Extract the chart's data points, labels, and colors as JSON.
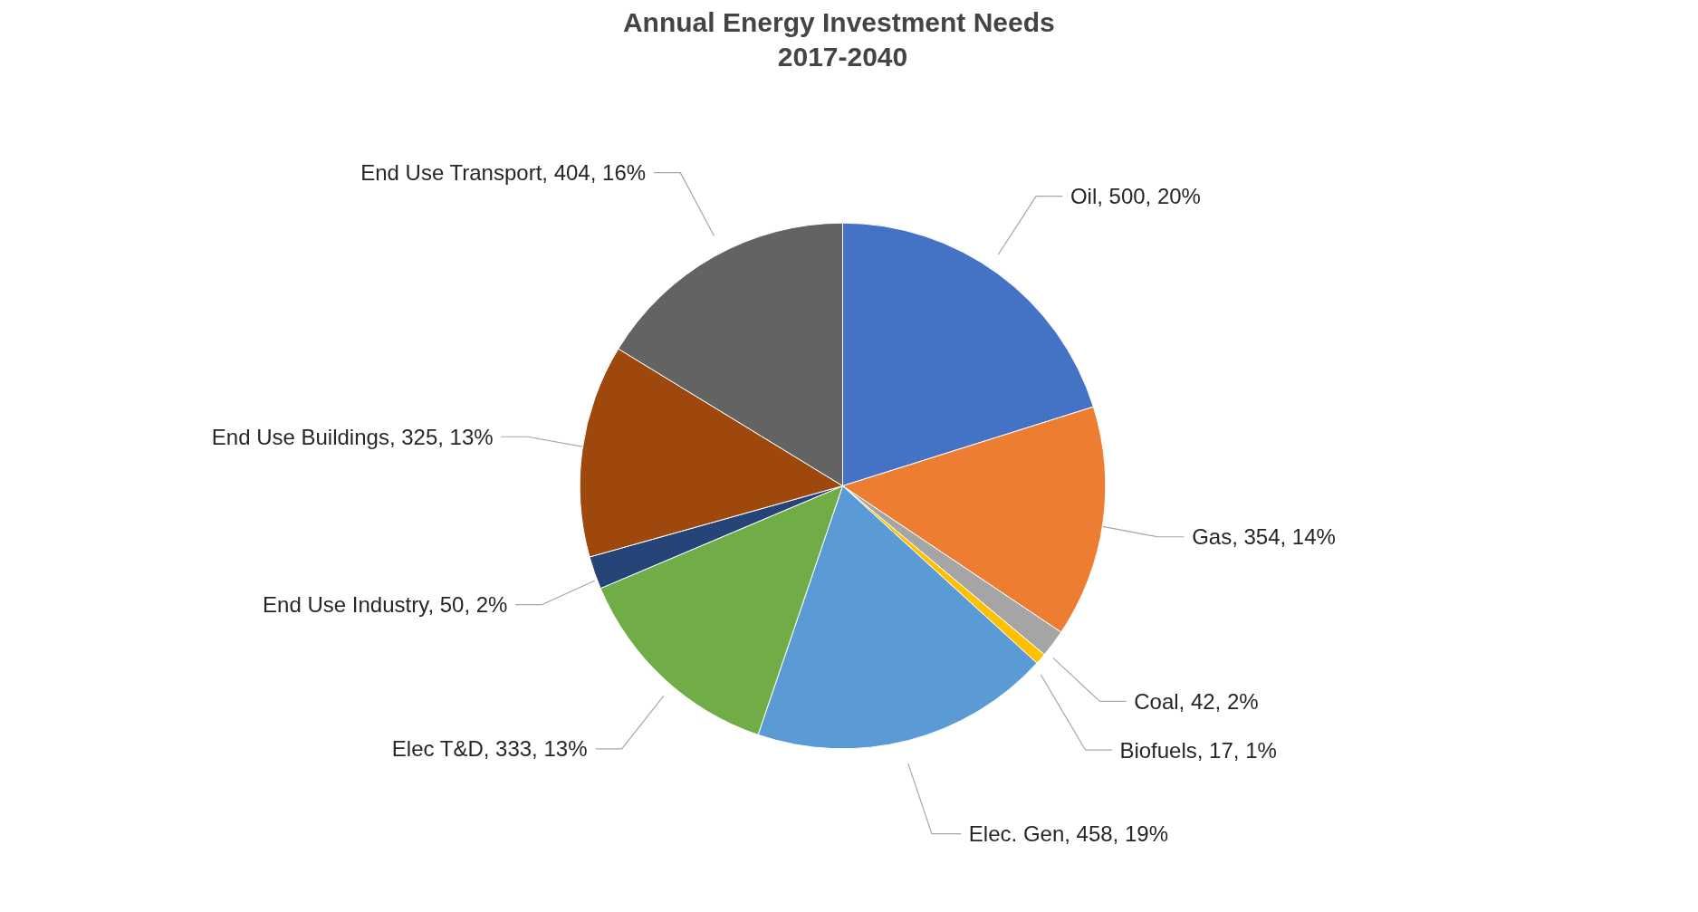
{
  "chart_data": {
    "type": "pie",
    "title": "Annual  Energy Investment Needs",
    "subtitle": "2017-2040",
    "categories": [
      "Oil",
      "Gas",
      "Coal",
      "Biofuels",
      "Elec. Gen",
      "Elec T&D",
      "End Use Industry",
      "End Use Buildings",
      "End Use Transport"
    ],
    "values": [
      500,
      354,
      42,
      17,
      458,
      333,
      50,
      325,
      404
    ],
    "colors": [
      "#4472c4",
      "#ed7d31",
      "#a5a5a5",
      "#ffc000",
      "#5b9bd5",
      "#70ad47",
      "#264478",
      "#9e480e",
      "#636363"
    ],
    "value_labels": [
      "500, 20%",
      "354, 14%",
      "42, 2%",
      "17, 1%",
      "458, 19%",
      "333, 13%",
      "50, 2%",
      "325, 13%",
      "404, 16%"
    ]
  }
}
